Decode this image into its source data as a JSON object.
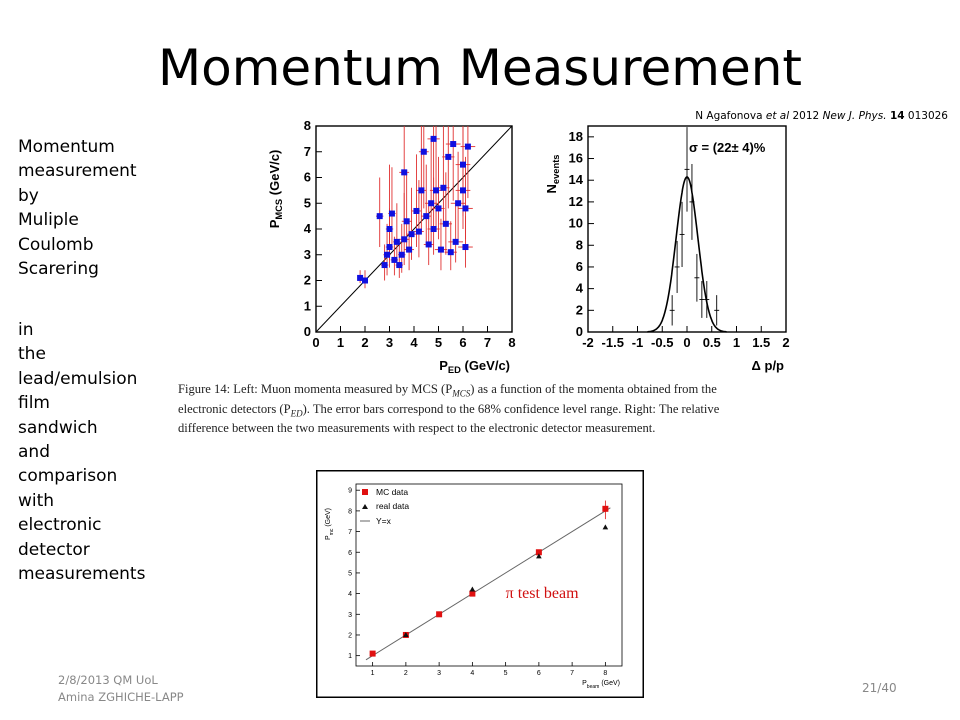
{
  "slide": {
    "title": "Momentum Measurement",
    "reference": {
      "authors": "N Agafonova",
      "etal": "et al",
      "year": "2012",
      "journal": "New J. Phys.",
      "volume": "14",
      "article": "013026"
    },
    "side_text_a": [
      "Momentum",
      "measurement",
      "by",
      "Muliple",
      "Coulomb",
      "Scarering"
    ],
    "side_text_b": [
      "in",
      "the",
      "lead/emulsion",
      "film",
      "sandwich",
      "and",
      "comparison",
      "with",
      "electronic",
      "detector",
      "measurements"
    ],
    "caption_lines": [
      "Figure 14: Left: Muon momenta measured by MCS (P",
      "MCS",
      ") as a function of the momenta obtained from the",
      "electronic detectors (P",
      "ED",
      "). The error bars correspond to the 68% confidence level range. Right: The relative",
      "difference between the two measurements with respect to the electronic detector measurement."
    ],
    "footer_line1": "2/8/2013 QM UoL",
    "footer_line2": "Amina ZGHICHE-LAPP",
    "page_number": "21/40"
  },
  "chart_data": [
    {
      "type": "scatter",
      "xlabel_main": "P",
      "xlabel_sub": "ED",
      "xlabel_unit": " (GeV/c)",
      "ylabel_main": "P",
      "ylabel_sub": "MCS",
      "ylabel_unit": " (GeV/c)",
      "xlim": [
        0,
        8
      ],
      "ylim": [
        0,
        8
      ],
      "xticks": [
        "0",
        "1",
        "2",
        "3",
        "4",
        "5",
        "6",
        "7",
        "8"
      ],
      "yticks": [
        "0",
        "1",
        "2",
        "3",
        "4",
        "5",
        "6",
        "7",
        "8"
      ],
      "reference_line": "y=x",
      "marker_color": "#1010e0",
      "errorbar_color": "#e03030",
      "points": [
        {
          "x": 1.8,
          "y": 2.1,
          "ex": 0.1,
          "eyl": 0.2,
          "eyh": 0.3
        },
        {
          "x": 2.0,
          "y": 2.0,
          "ex": 0.1,
          "eyl": 0.3,
          "eyh": 0.4
        },
        {
          "x": 2.6,
          "y": 4.5,
          "ex": 0.15,
          "eyl": 1.2,
          "eyh": 1.5
        },
        {
          "x": 2.8,
          "y": 2.6,
          "ex": 0.15,
          "eyl": 0.6,
          "eyh": 0.8
        },
        {
          "x": 2.9,
          "y": 3.0,
          "ex": 0.15,
          "eyl": 0.8,
          "eyh": 1.2
        },
        {
          "x": 3.0,
          "y": 4.0,
          "ex": 0.15,
          "eyl": 1.2,
          "eyh": 2.5
        },
        {
          "x": 3.0,
          "y": 3.3,
          "ex": 0.15,
          "eyl": 0.8,
          "eyh": 1.5
        },
        {
          "x": 3.1,
          "y": 4.6,
          "ex": 0.15,
          "eyl": 1.2,
          "eyh": 1.8
        },
        {
          "x": 3.2,
          "y": 2.8,
          "ex": 0.15,
          "eyl": 0.6,
          "eyh": 0.9
        },
        {
          "x": 3.3,
          "y": 3.5,
          "ex": 0.15,
          "eyl": 1.0,
          "eyh": 1.5
        },
        {
          "x": 3.4,
          "y": 2.6,
          "ex": 0.15,
          "eyl": 0.5,
          "eyh": 0.8
        },
        {
          "x": 3.5,
          "y": 3.0,
          "ex": 0.15,
          "eyl": 0.7,
          "eyh": 1.2
        },
        {
          "x": 3.6,
          "y": 6.2,
          "ex": 0.2,
          "eyl": 1.8,
          "eyh": 2.5
        },
        {
          "x": 3.6,
          "y": 3.6,
          "ex": 0.2,
          "eyl": 1.0,
          "eyh": 1.8
        },
        {
          "x": 3.7,
          "y": 4.3,
          "ex": 0.2,
          "eyl": 1.2,
          "eyh": 2.0
        },
        {
          "x": 3.8,
          "y": 3.2,
          "ex": 0.2,
          "eyl": 0.8,
          "eyh": 1.2
        },
        {
          "x": 3.9,
          "y": 3.8,
          "ex": 0.2,
          "eyl": 1.0,
          "eyh": 1.8
        },
        {
          "x": 4.1,
          "y": 4.7,
          "ex": 0.2,
          "eyl": 1.4,
          "eyh": 2.2
        },
        {
          "x": 4.2,
          "y": 3.9,
          "ex": 0.2,
          "eyl": 1.0,
          "eyh": 2.0
        },
        {
          "x": 4.3,
          "y": 5.5,
          "ex": 0.2,
          "eyl": 1.6,
          "eyh": 2.5
        },
        {
          "x": 4.4,
          "y": 7.0,
          "ex": 0.2,
          "eyl": 2.2,
          "eyh": 1.5
        },
        {
          "x": 4.5,
          "y": 4.5,
          "ex": 0.2,
          "eyl": 1.2,
          "eyh": 2.0
        },
        {
          "x": 4.6,
          "y": 3.4,
          "ex": 0.2,
          "eyl": 0.8,
          "eyh": 1.5
        },
        {
          "x": 4.7,
          "y": 5.0,
          "ex": 0.25,
          "eyl": 1.5,
          "eyh": 2.5
        },
        {
          "x": 4.8,
          "y": 4.0,
          "ex": 0.25,
          "eyl": 1.0,
          "eyh": 2.0
        },
        {
          "x": 4.8,
          "y": 7.5,
          "ex": 0.25,
          "eyl": 2.0,
          "eyh": 1.0
        },
        {
          "x": 4.9,
          "y": 5.5,
          "ex": 0.25,
          "eyl": 1.5,
          "eyh": 2.5
        },
        {
          "x": 5.0,
          "y": 4.8,
          "ex": 0.25,
          "eyl": 1.2,
          "eyh": 2.0
        },
        {
          "x": 5.1,
          "y": 3.2,
          "ex": 0.25,
          "eyl": 0.8,
          "eyh": 1.2
        },
        {
          "x": 5.2,
          "y": 5.6,
          "ex": 0.25,
          "eyl": 1.5,
          "eyh": 2.5
        },
        {
          "x": 5.3,
          "y": 4.2,
          "ex": 0.25,
          "eyl": 1.2,
          "eyh": 2.0
        },
        {
          "x": 5.4,
          "y": 6.8,
          "ex": 0.25,
          "eyl": 2.0,
          "eyh": 1.2
        },
        {
          "x": 5.5,
          "y": 3.1,
          "ex": 0.25,
          "eyl": 0.7,
          "eyh": 1.2
        },
        {
          "x": 5.6,
          "y": 7.3,
          "ex": 0.3,
          "eyl": 2.2,
          "eyh": 0.7
        },
        {
          "x": 5.7,
          "y": 3.5,
          "ex": 0.3,
          "eyl": 0.8,
          "eyh": 1.5
        },
        {
          "x": 5.8,
          "y": 5.0,
          "ex": 0.3,
          "eyl": 1.4,
          "eyh": 2.0
        },
        {
          "x": 6.0,
          "y": 5.5,
          "ex": 0.3,
          "eyl": 1.5,
          "eyh": 2.5
        },
        {
          "x": 6.0,
          "y": 6.5,
          "ex": 0.3,
          "eyl": 2.0,
          "eyh": 1.5
        },
        {
          "x": 6.1,
          "y": 4.8,
          "ex": 0.3,
          "eyl": 1.2,
          "eyh": 2.0
        },
        {
          "x": 6.1,
          "y": 3.3,
          "ex": 0.3,
          "eyl": 0.8,
          "eyh": 1.2
        },
        {
          "x": 6.2,
          "y": 7.2,
          "ex": 0.3,
          "eyl": 2.0,
          "eyh": 0.8
        }
      ]
    },
    {
      "type": "histogram",
      "xlabel": "Δ p/p",
      "ylabel_main": "N",
      "ylabel_sub": "events",
      "xlim": [
        -2,
        2
      ],
      "ylim": [
        0,
        19
      ],
      "xticks": [
        "-2",
        "-1.5",
        "-1",
        "-0.5",
        "0",
        "0.5",
        "1",
        "1.5",
        "2"
      ],
      "yticks": [
        "0",
        "2",
        "4",
        "6",
        "8",
        "10",
        "12",
        "14",
        "16",
        "18"
      ],
      "annotation": "σ = (22± 4)%",
      "fit": {
        "function": "gaussian",
        "mean": 0.0,
        "sigma": 0.22,
        "amplitude": 14.3
      },
      "bins": [
        {
          "x": -0.3,
          "y": 2,
          "ey": 1.4
        },
        {
          "x": -0.2,
          "y": 6,
          "ey": 2.4
        },
        {
          "x": -0.1,
          "y": 9,
          "ey": 3.0
        },
        {
          "x": 0.0,
          "y": 15,
          "ey": 3.9
        },
        {
          "x": 0.1,
          "y": 12,
          "ey": 3.5
        },
        {
          "x": 0.2,
          "y": 5,
          "ey": 2.2
        },
        {
          "x": 0.3,
          "y": 3,
          "ey": 1.7
        },
        {
          "x": 0.4,
          "y": 3,
          "ey": 1.7
        },
        {
          "x": 0.6,
          "y": 2,
          "ey": 1.4
        }
      ]
    },
    {
      "type": "scatter",
      "xlabel_main": "P",
      "xlabel_sub": "beam",
      "xlabel_unit": " (GeV)",
      "ylabel_main": "P",
      "ylabel_sub": "mc",
      "ylabel_unit": " (GeV)",
      "xlim": [
        0.5,
        8.5
      ],
      "ylim": [
        0.5,
        9.3
      ],
      "xticks": [
        "1",
        "2",
        "3",
        "4",
        "5",
        "6",
        "7",
        "8"
      ],
      "yticks": [
        "1",
        "2",
        "3",
        "4",
        "5",
        "6",
        "7",
        "8",
        "9"
      ],
      "annotation": "π test beam",
      "legend": {
        "position": "top-left",
        "entries": [
          "MC data",
          "real data",
          "Y=x"
        ]
      },
      "series": [
        {
          "name": "MC data",
          "marker": "square",
          "color": "#e01010",
          "x": [
            1,
            2,
            3,
            4,
            6,
            8
          ],
          "y": [
            1.1,
            2.0,
            3.0,
            4.0,
            6.0,
            8.1
          ]
        },
        {
          "name": "real data",
          "marker": "triangle",
          "color": "#111111",
          "x": [
            2,
            4,
            6,
            8
          ],
          "y": [
            2.0,
            4.2,
            5.8,
            7.2
          ]
        }
      ]
    }
  ]
}
